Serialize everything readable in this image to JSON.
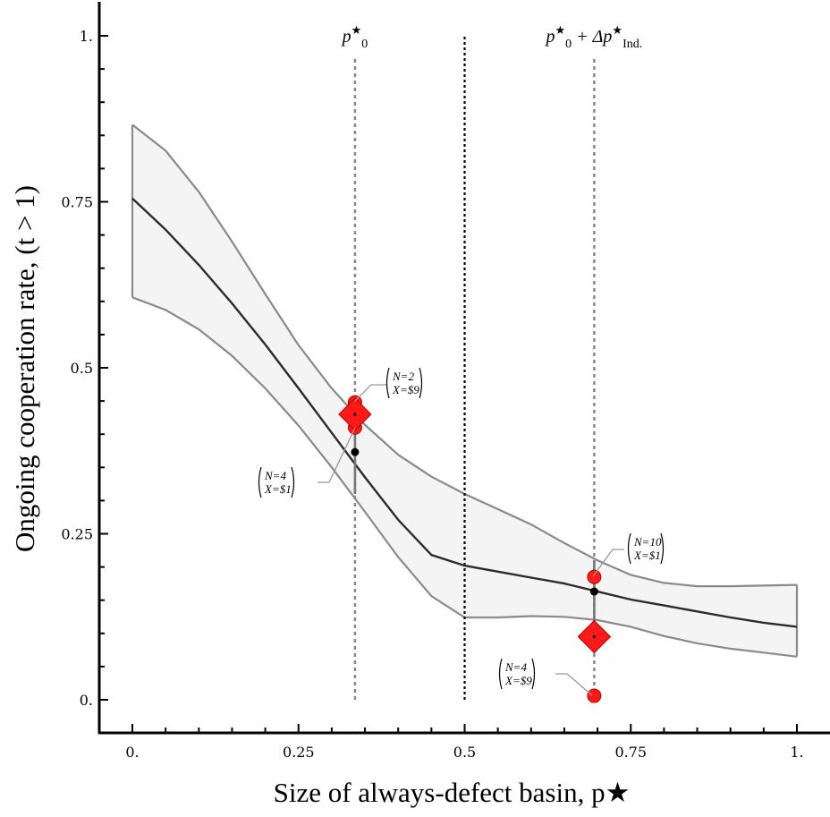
{
  "chart_data": {
    "type": "line",
    "xlabel": "Size of always-defect basin, p★",
    "ylabel": "Ongoing cooperation rate, (t > 1)",
    "xlim": [
      0,
      1
    ],
    "ylim": [
      0,
      1
    ],
    "x_ticks": [
      0,
      0.25,
      0.5,
      0.75,
      1
    ],
    "x_tick_labels": [
      "0.",
      "0.25",
      "0.5",
      "0.75",
      "1."
    ],
    "y_ticks": [
      0,
      0.25,
      0.5,
      0.75,
      1
    ],
    "y_tick_labels": [
      "0.",
      "0.25",
      "0.5",
      "0.75",
      "1."
    ],
    "model_line": {
      "x": [
        0.0,
        0.05,
        0.1,
        0.15,
        0.2,
        0.25,
        0.3,
        0.35,
        0.4,
        0.45,
        0.5,
        0.55,
        0.6,
        0.65,
        0.7,
        0.75,
        0.8,
        0.85,
        0.9,
        0.95,
        1.0
      ],
      "y": [
        0.755,
        0.708,
        0.655,
        0.597,
        0.535,
        0.469,
        0.402,
        0.335,
        0.271,
        0.218,
        0.202,
        0.193,
        0.184,
        0.175,
        0.163,
        0.151,
        0.142,
        0.133,
        0.124,
        0.116,
        0.11
      ]
    },
    "band_upper": {
      "x": [
        0.0,
        0.05,
        0.1,
        0.15,
        0.2,
        0.25,
        0.3,
        0.35,
        0.4,
        0.45,
        0.5,
        0.55,
        0.6,
        0.65,
        0.7,
        0.75,
        0.8,
        0.85,
        0.9,
        0.95,
        1.0
      ],
      "y": [
        0.866,
        0.827,
        0.765,
        0.69,
        0.611,
        0.534,
        0.469,
        0.414,
        0.369,
        0.336,
        0.31,
        0.287,
        0.264,
        0.236,
        0.21,
        0.188,
        0.176,
        0.171,
        0.171,
        0.172,
        0.173
      ]
    },
    "band_lower": {
      "x": [
        0.0,
        0.05,
        0.1,
        0.15,
        0.2,
        0.25,
        0.3,
        0.35,
        0.4,
        0.45,
        0.5,
        0.55,
        0.6,
        0.65,
        0.7,
        0.75,
        0.8,
        0.85,
        0.9,
        0.95,
        1.0
      ],
      "y": [
        0.606,
        0.587,
        0.558,
        0.518,
        0.469,
        0.413,
        0.35,
        0.283,
        0.215,
        0.156,
        0.124,
        0.124,
        0.126,
        0.125,
        0.12,
        0.11,
        0.096,
        0.085,
        0.077,
        0.071,
        0.065
      ]
    },
    "vertical_lines": [
      {
        "x": 0.335,
        "label_main": "p",
        "label_sup": "★",
        "label_sub": "0",
        "label_rest": "",
        "label_rest_sub": "",
        "style": "dotted-gray"
      },
      {
        "x": 0.5,
        "style": "dotted-black"
      },
      {
        "x": 0.695,
        "label_main": "p",
        "label_sup": "★",
        "label_sub": "0",
        "label_rest": " + Δp",
        "label_rest_sub": "Ind.",
        "style": "dotted-gray"
      }
    ],
    "model_points": [
      {
        "x": 0.335,
        "y": 0.373,
        "err_low": 0.31,
        "err_high": 0.43
      },
      {
        "x": 0.695,
        "y": 0.163,
        "err_low": 0.12,
        "err_high": 0.21
      }
    ],
    "experiment_means": [
      {
        "x": 0.335,
        "y": 0.43
      },
      {
        "x": 0.695,
        "y": 0.095
      }
    ],
    "experiment_points": [
      {
        "x": 0.335,
        "y": 0.448,
        "N": "N=2",
        "X": "X=$9"
      },
      {
        "x": 0.335,
        "y": 0.41,
        "N": "N=4",
        "X": "X=$1"
      },
      {
        "x": 0.695,
        "y": 0.185,
        "N": "N=10",
        "X": "X=$1"
      },
      {
        "x": 0.695,
        "y": 0.006,
        "N": "N=4",
        "X": "X=$9"
      }
    ],
    "colors": {
      "line": "#2b2b2b",
      "band_edge": "#8a8a8a",
      "band_fill": "#f4f4f4",
      "marker": "#ff1a1a",
      "marker_edge": "#b00000",
      "model_point": "#000000"
    }
  }
}
